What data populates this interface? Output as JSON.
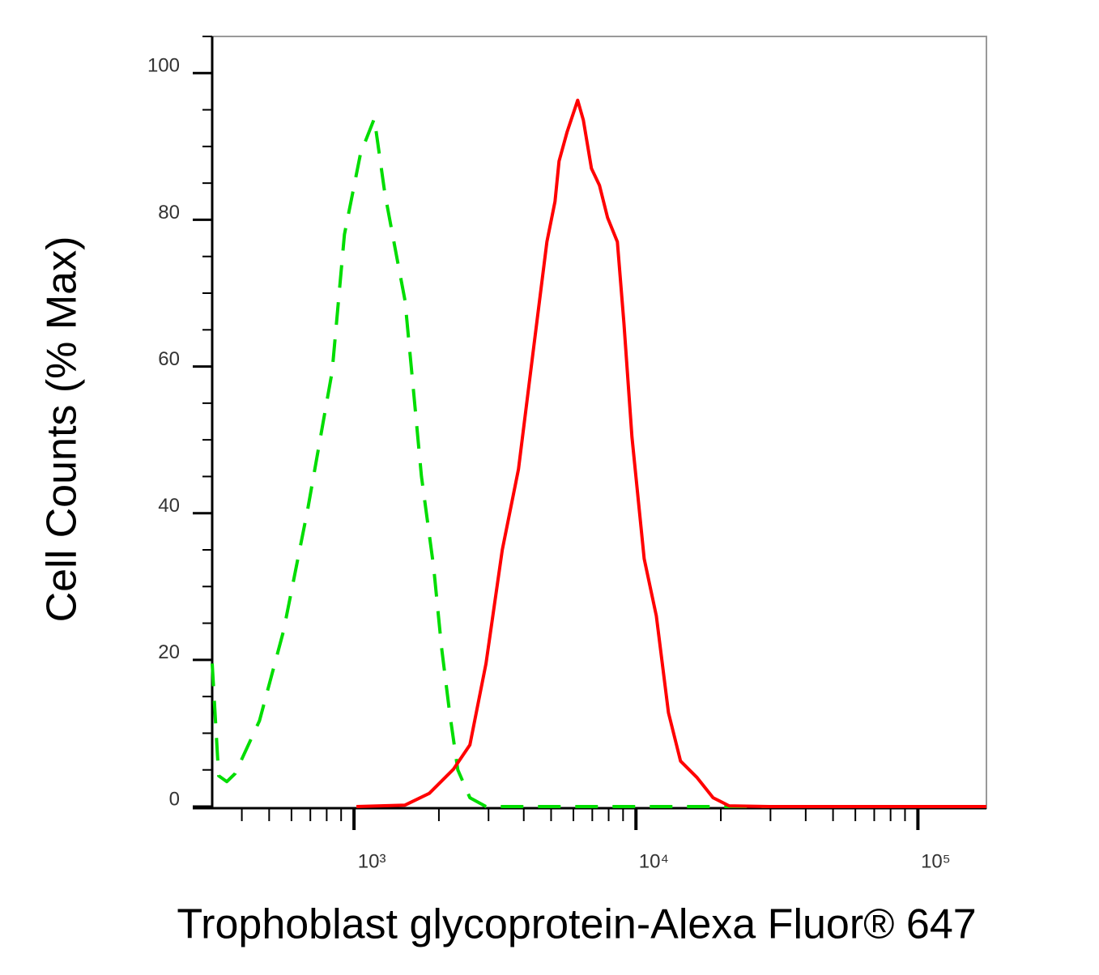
{
  "chart_data": {
    "type": "line",
    "xlabel": "Trophoblast glycoprotein-Alexa Fluor® 647",
    "ylabel": "Cell Counts (% Max)",
    "xscale": "log",
    "xlim": [
      314,
      175000
    ],
    "ylim": [
      0,
      105
    ],
    "xticks": [
      {
        "value": 1000,
        "label": "10³"
      },
      {
        "value": 10000,
        "label": "10⁴"
      },
      {
        "value": 100000,
        "label": "10⁵"
      }
    ],
    "xminorticks": [
      400,
      500,
      600,
      700,
      800,
      900,
      2000,
      3000,
      4000,
      5000,
      6000,
      7000,
      8000,
      9000,
      20000,
      30000,
      40000,
      50000,
      60000,
      70000,
      80000,
      90000
    ],
    "yticks": [
      0,
      20,
      40,
      60,
      80,
      100
    ],
    "yminorticks": [
      5,
      10,
      15,
      25,
      30,
      35,
      45,
      50,
      55,
      65,
      70,
      75,
      85,
      90,
      95,
      105
    ],
    "series": [
      {
        "color": "#00dd00",
        "dashed": true,
        "x": [
          314,
          331,
          354,
          379,
          462,
          562,
          685,
          836,
          925,
          1054,
          1180,
          1286,
          1420,
          1517,
          1622,
          1734,
          1916,
          2044,
          2183,
          2334,
          2576,
          2939,
          175000
        ],
        "values": [
          19.5,
          4.2,
          3.4,
          4.5,
          11.7,
          23.9,
          40.5,
          59.3,
          78,
          89,
          93.8,
          83.6,
          74.8,
          69,
          57,
          45,
          32.7,
          21.7,
          12.8,
          5,
          1.2,
          0,
          0
        ]
      },
      {
        "color": "#ff0000",
        "dashed": false,
        "x": [
          1020,
          1517,
          1849,
          2254,
          2576,
          2939,
          3356,
          3831,
          4373,
          4831,
          5162,
          5336,
          5702,
          6213,
          6506,
          6951,
          7425,
          7931,
          8589,
          9062,
          9679,
          10690,
          11810,
          13040,
          14390,
          16430,
          18770,
          21400,
          29780,
          175000
        ],
        "values": [
          0,
          0.2,
          1.8,
          5.1,
          8.4,
          19.5,
          35,
          46,
          63.7,
          77,
          82.5,
          88,
          92,
          96.3,
          93.6,
          87,
          84.7,
          80.3,
          77,
          65.9,
          50.4,
          33.8,
          26,
          12.8,
          6.2,
          4,
          1.2,
          0.1,
          0,
          0
        ]
      }
    ]
  }
}
